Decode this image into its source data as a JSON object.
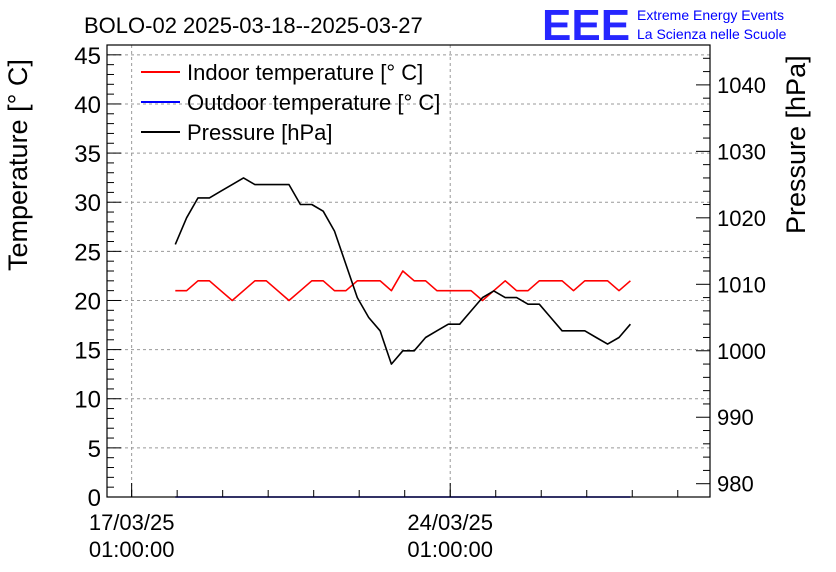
{
  "title": "BOLO-02 2025-03-18--2025-03-27",
  "logo": {
    "mark": "EEE",
    "line1": "Extreme Energy Events",
    "line2": "La Scienza nelle Scuole",
    "color": "#0000ff"
  },
  "chart_data": {
    "type": "line",
    "title": "BOLO-02 2025-03-18--2025-03-27",
    "xlabel": "",
    "ylabel": "Temperature [° C]",
    "y2label": "Pressure [hPa]",
    "xlim": [
      "2025-03-16 12:00",
      "2025-03-29 18:00"
    ],
    "ylim": [
      0,
      46
    ],
    "y2lim": [
      978,
      1046
    ],
    "yticks": [
      0,
      5,
      10,
      15,
      20,
      25,
      30,
      35,
      40,
      45
    ],
    "y2ticks": [
      980,
      990,
      1000,
      1010,
      1020,
      1030,
      1040
    ],
    "xticks": [
      {
        "t": "2025-03-17 01:00",
        "line1": "17/03/25",
        "line2": "01:00:00"
      },
      {
        "t": "2025-03-24 01:00",
        "line1": "24/03/25",
        "line2": "01:00:00"
      }
    ],
    "grid": true,
    "legend_position": "top-left",
    "series": [
      {
        "name": "Indoor temperature [° C]",
        "color": "#ff0000",
        "axis": "left",
        "x": [
          "2025-03-18 00:00",
          "2025-03-18 06:00",
          "2025-03-18 12:00",
          "2025-03-18 18:00",
          "2025-03-19 00:00",
          "2025-03-19 06:00",
          "2025-03-19 12:00",
          "2025-03-19 18:00",
          "2025-03-20 00:00",
          "2025-03-20 06:00",
          "2025-03-20 12:00",
          "2025-03-20 18:00",
          "2025-03-21 00:00",
          "2025-03-21 06:00",
          "2025-03-21 12:00",
          "2025-03-21 18:00",
          "2025-03-22 00:00",
          "2025-03-22 06:00",
          "2025-03-22 12:00",
          "2025-03-22 18:00",
          "2025-03-23 00:00",
          "2025-03-23 06:00",
          "2025-03-23 12:00",
          "2025-03-23 18:00",
          "2025-03-24 00:00",
          "2025-03-24 06:00",
          "2025-03-24 12:00",
          "2025-03-24 18:00",
          "2025-03-25 00:00",
          "2025-03-25 06:00",
          "2025-03-25 12:00",
          "2025-03-25 18:00",
          "2025-03-26 00:00",
          "2025-03-26 06:00",
          "2025-03-26 12:00",
          "2025-03-26 18:00",
          "2025-03-27 00:00",
          "2025-03-27 06:00",
          "2025-03-27 12:00",
          "2025-03-27 18:00",
          "2025-03-28 00:00"
        ],
        "values": [
          21,
          21,
          22,
          22,
          21,
          20,
          21,
          22,
          22,
          21,
          20,
          21,
          22,
          22,
          21,
          21,
          22,
          22,
          22,
          21,
          23,
          22,
          22,
          21,
          21,
          21,
          21,
          20,
          21,
          22,
          21,
          21,
          22,
          22,
          22,
          21,
          22,
          22,
          22,
          21,
          22
        ]
      },
      {
        "name": "Outdoor temperature [° C]",
        "color": "#0000ff",
        "axis": "left",
        "x": [
          "2025-03-18 00:00",
          "2025-03-28 00:00"
        ],
        "values": [
          0,
          0
        ]
      },
      {
        "name": "Pressure [hPa]",
        "color": "#000000",
        "axis": "right",
        "x": [
          "2025-03-18 00:00",
          "2025-03-18 06:00",
          "2025-03-18 12:00",
          "2025-03-18 18:00",
          "2025-03-19 00:00",
          "2025-03-19 06:00",
          "2025-03-19 12:00",
          "2025-03-19 18:00",
          "2025-03-20 00:00",
          "2025-03-20 06:00",
          "2025-03-20 12:00",
          "2025-03-20 18:00",
          "2025-03-21 00:00",
          "2025-03-21 06:00",
          "2025-03-21 12:00",
          "2025-03-21 18:00",
          "2025-03-22 00:00",
          "2025-03-22 06:00",
          "2025-03-22 12:00",
          "2025-03-22 18:00",
          "2025-03-23 00:00",
          "2025-03-23 06:00",
          "2025-03-23 12:00",
          "2025-03-23 18:00",
          "2025-03-24 00:00",
          "2025-03-24 06:00",
          "2025-03-24 12:00",
          "2025-03-24 18:00",
          "2025-03-25 00:00",
          "2025-03-25 06:00",
          "2025-03-25 12:00",
          "2025-03-25 18:00",
          "2025-03-26 00:00",
          "2025-03-26 06:00",
          "2025-03-26 12:00",
          "2025-03-26 18:00",
          "2025-03-27 00:00",
          "2025-03-27 06:00",
          "2025-03-27 12:00",
          "2025-03-27 18:00",
          "2025-03-28 00:00"
        ],
        "values": [
          1016,
          1020,
          1023,
          1023,
          1024,
          1025,
          1026,
          1025,
          1025,
          1025,
          1025,
          1022,
          1022,
          1021,
          1018,
          1013,
          1008,
          1005,
          1003,
          998,
          1000,
          1000,
          1002,
          1003,
          1004,
          1004,
          1006,
          1008,
          1009,
          1008,
          1008,
          1007,
          1007,
          1005,
          1003,
          1003,
          1003,
          1002,
          1001,
          1002,
          1004
        ]
      }
    ]
  }
}
